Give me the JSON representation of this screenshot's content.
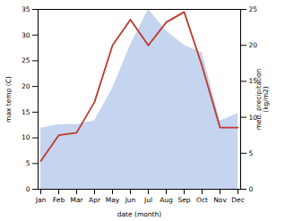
{
  "chart_data": {
    "type": "line",
    "xlabel": "date (month)",
    "ylabel": "max temp (C)",
    "y2label": "med. precipitation\n(kg/m2)",
    "categories": [
      "Jan",
      "Feb",
      "Mar",
      "Apr",
      "May",
      "Jun",
      "Jul",
      "Aug",
      "Sep",
      "Oct",
      "Nov",
      "Dec"
    ],
    "series": [
      {
        "type": "area",
        "axis": "y2",
        "color": "#c5d4ef",
        "values": [
          8.5,
          9.0,
          9.0,
          9.5,
          14.0,
          20.0,
          25.0,
          22.0,
          20.0,
          19.0,
          9.5,
          10.5
        ]
      },
      {
        "type": "line",
        "color": "#c0392b",
        "values": [
          5.5,
          10.5,
          11.0,
          17.0,
          28.0,
          33.0,
          28.0,
          32.5,
          34.5,
          24.0,
          12.0,
          12.0
        ]
      }
    ],
    "ylim": [
      0,
      35
    ],
    "yticks": [
      0,
      5,
      10,
      15,
      20,
      25,
      30,
      35
    ],
    "y2lim": [
      0,
      25
    ],
    "y2ticks": [
      0,
      5,
      10,
      15,
      20,
      25
    ]
  }
}
